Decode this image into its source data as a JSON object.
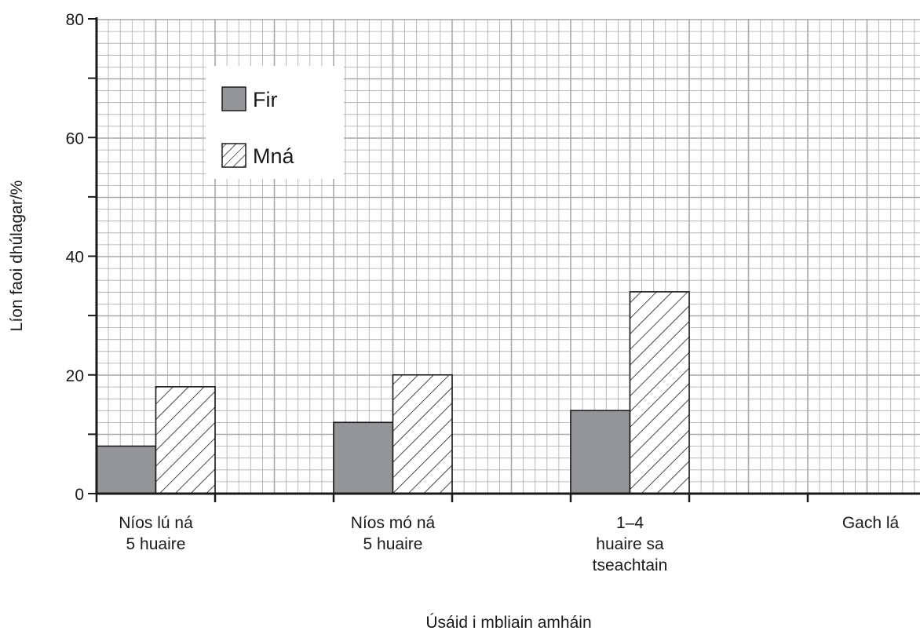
{
  "chart_data": {
    "type": "bar",
    "title": "",
    "xlabel": "Úsáid i mbliain amháin",
    "ylabel": "Líon faoi dhúlagar/%",
    "ylim": [
      0,
      80
    ],
    "yticks": [
      "0",
      "20",
      "40",
      "60",
      "80"
    ],
    "categories": [
      [
        "Níos lú ná",
        "5 huaire"
      ],
      [
        "Níos mó ná",
        "5 huaire"
      ],
      [
        "1–4",
        "huaire sa",
        "tseachtain"
      ],
      [
        "Gach lá"
      ]
    ],
    "series": [
      {
        "name": "Fir",
        "values": [
          8,
          12,
          14,
          null
        ],
        "pattern": "solid",
        "color": "#939598"
      },
      {
        "name": "Mná",
        "values": [
          18,
          20,
          34,
          null
        ],
        "pattern": "hatch",
        "color": "#ffffff"
      }
    ],
    "grid": true,
    "legend_position": "top-left",
    "colors": {
      "axis": "#1a1a1a",
      "grid": "#a7a9ac",
      "bar_stroke": "#1a1a1a"
    }
  }
}
